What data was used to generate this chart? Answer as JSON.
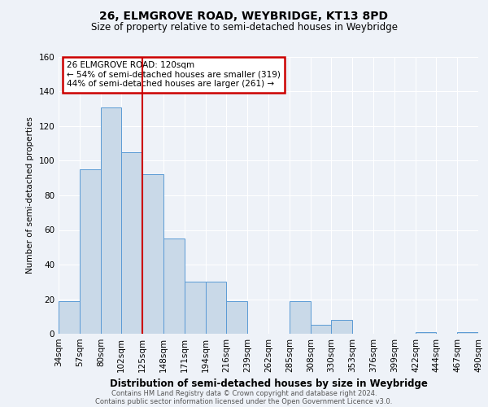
{
  "title1": "26, ELMGROVE ROAD, WEYBRIDGE, KT13 8PD",
  "title2": "Size of property relative to semi-detached houses in Weybridge",
  "xlabel": "Distribution of semi-detached houses by size in Weybridge",
  "ylabel": "Number of semi-detached properties",
  "footer1": "Contains HM Land Registry data © Crown copyright and database right 2024.",
  "footer2": "Contains public sector information licensed under the Open Government Licence v3.0.",
  "annotation_title": "26 ELMGROVE ROAD: 120sqm",
  "annotation_line1": "← 54% of semi-detached houses are smaller (319)",
  "annotation_line2": "44% of semi-detached houses are larger (261) →",
  "bin_edges": [
    34,
    57,
    80,
    102,
    125,
    148,
    171,
    194,
    216,
    239,
    262,
    285,
    308,
    330,
    353,
    376,
    399,
    422,
    444,
    467,
    490
  ],
  "bin_labels": [
    "34sqm",
    "57sqm",
    "80sqm",
    "102sqm",
    "125sqm",
    "148sqm",
    "171sqm",
    "194sqm",
    "216sqm",
    "239sqm",
    "262sqm",
    "285sqm",
    "308sqm",
    "330sqm",
    "353sqm",
    "376sqm",
    "399sqm",
    "422sqm",
    "444sqm",
    "467sqm",
    "490sqm"
  ],
  "counts": [
    19,
    95,
    131,
    105,
    92,
    55,
    30,
    30,
    19,
    0,
    0,
    19,
    5,
    8,
    0,
    0,
    0,
    1,
    0,
    1,
    0
  ],
  "bar_color": "#c9d9e8",
  "bar_edge_color": "#5b9bd5",
  "red_line_x": 125,
  "annotation_box_color": "#cc0000",
  "background_color": "#eef2f8",
  "ylim": [
    0,
    160
  ],
  "yticks": [
    0,
    20,
    40,
    60,
    80,
    100,
    120,
    140,
    160
  ],
  "grid_color": "#ffffff",
  "title1_fontsize": 10,
  "title2_fontsize": 8.5,
  "xlabel_fontsize": 8.5,
  "ylabel_fontsize": 7.5,
  "tick_fontsize": 7.5,
  "ann_fontsize": 7.5
}
